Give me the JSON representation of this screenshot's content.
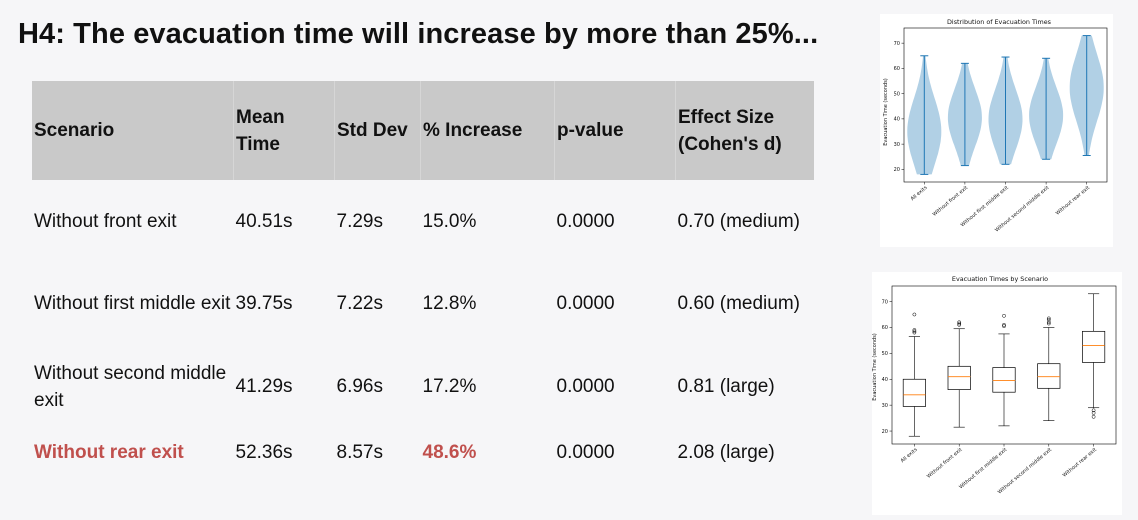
{
  "slide": {
    "title": "H4: The evacuation time will increase by more than 25%..."
  },
  "table": {
    "headers": [
      "Scenario",
      "Mean Time",
      "Std Dev",
      "% Increase",
      "p-value",
      "Effect Size (Cohen's d)"
    ],
    "rows": [
      {
        "scenario": "Without front exit",
        "mean": "40.51s",
        "std": "7.29s",
        "increase": "15.0%",
        "p": "0.0000",
        "effect": "0.70 (medium)",
        "highlight": false
      },
      {
        "scenario": "Without first middle exit",
        "mean": "39.75s",
        "std": "7.22s",
        "increase": "12.8%",
        "p": "0.0000",
        "effect": "0.60 (medium)",
        "highlight": false
      },
      {
        "scenario": "Without second middle exit",
        "mean": "41.29s",
        "std": "6.96s",
        "increase": "17.2%",
        "p": "0.0000",
        "effect": "0.81 (large)",
        "highlight": false
      },
      {
        "scenario": "Without rear exit",
        "mean": "52.36s",
        "std": "8.57s",
        "increase": "48.6%",
        "p": "0.0000",
        "effect": "2.08 (large)",
        "highlight": true
      }
    ],
    "highlight_color": "#c0504d"
  },
  "chart_data": [
    {
      "type": "violin",
      "title": "Distribution of Evacuation Times",
      "ylabel": "Evacuation Time (seconds)",
      "xlabel": "",
      "categories": [
        "All exits",
        "Without front exit",
        "Without first middle exit",
        "Without second middle exit",
        "Without rear exit"
      ],
      "ylim": [
        15,
        76
      ],
      "yticks": [
        20,
        30,
        40,
        50,
        60,
        70
      ],
      "series": [
        {
          "category": "All exits",
          "min": 18,
          "max": 65,
          "mean": 35
        },
        {
          "category": "Without front exit",
          "min": 21.5,
          "max": 62,
          "mean": 40.5
        },
        {
          "category": "Without first middle exit",
          "min": 22,
          "max": 64.5,
          "mean": 39.8
        },
        {
          "category": "Without second middle exit",
          "min": 24,
          "max": 64,
          "mean": 41.3
        },
        {
          "category": "Without rear exit",
          "min": 25.5,
          "max": 73,
          "mean": 52.4
        }
      ],
      "color": "#1f77b4",
      "grid": false
    },
    {
      "type": "box",
      "title": "Evacuation Times by Scenario",
      "ylabel": "Evacuation Time (seconds)",
      "xlabel": "",
      "categories": [
        "All exits",
        "Without front exit",
        "Without first middle exit",
        "Without second middle exit",
        "Without rear exit"
      ],
      "ylim": [
        15,
        76
      ],
      "yticks": [
        20,
        30,
        40,
        50,
        60,
        70
      ],
      "boxes": [
        {
          "whisker_low": 18,
          "q1": 29.5,
          "median": 34,
          "q3": 40,
          "whisker_high": 56.5,
          "outliers": [
            58,
            58.5,
            59,
            65
          ]
        },
        {
          "whisker_low": 21.5,
          "q1": 36,
          "median": 41,
          "q3": 45,
          "whisker_high": 59.5,
          "outliers": [
            61,
            61.5,
            62
          ]
        },
        {
          "whisker_low": 22,
          "q1": 35,
          "median": 39.5,
          "q3": 44.5,
          "whisker_high": 57.5,
          "outliers": [
            60.5,
            61,
            64.5
          ]
        },
        {
          "whisker_low": 24,
          "q1": 36.5,
          "median": 41,
          "q3": 46,
          "whisker_high": 60,
          "outliers": [
            61.5,
            62,
            63,
            63.5
          ]
        },
        {
          "whisker_low": 29,
          "q1": 46.5,
          "median": 53,
          "q3": 58.5,
          "whisker_high": 73,
          "outliers": [
            25.5,
            27,
            28
          ]
        }
      ],
      "box_color": "#000000",
      "median_color": "#ff7f0e",
      "grid": false
    }
  ]
}
